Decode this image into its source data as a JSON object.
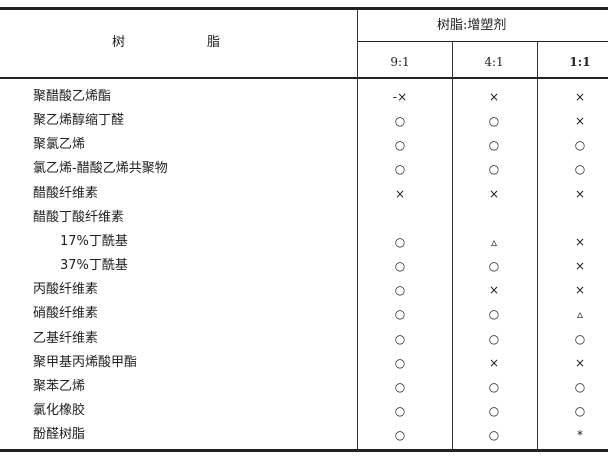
{
  "header": {
    "resin_label_left": "树",
    "resin_label_right": "脂",
    "ratio_group": "树脂:增塑剂",
    "ratios": [
      "9:1",
      "4:1",
      "1:1"
    ]
  },
  "rows": [
    {
      "name": "聚醋酸乙烯酯",
      "indent": false,
      "values": [
        "-×",
        "×",
        "×"
      ]
    },
    {
      "name": "聚乙烯醇缩丁醛",
      "indent": false,
      "values": [
        "○",
        "○",
        "×"
      ]
    },
    {
      "name": "聚氯乙烯",
      "indent": false,
      "values": [
        "○",
        "○",
        "○"
      ]
    },
    {
      "name": "氯乙烯-醋酸乙烯共聚物",
      "indent": false,
      "values": [
        "○",
        "○",
        "○"
      ]
    },
    {
      "name": "醋酸纤维素",
      "indent": false,
      "values": [
        "×",
        "×",
        "×"
      ]
    },
    {
      "name": "醋酸丁酸纤维素",
      "indent": false,
      "values": [
        "",
        "",
        ""
      ]
    },
    {
      "name": "17%丁酰基",
      "indent": true,
      "values": [
        "○",
        "▵",
        "×"
      ]
    },
    {
      "name": "37%丁酰基",
      "indent": true,
      "values": [
        "○",
        "○",
        "×"
      ]
    },
    {
      "name": "丙酸纤维素",
      "indent": false,
      "values": [
        "○",
        "×",
        "×"
      ]
    },
    {
      "name": "硝酸纤维素",
      "indent": false,
      "values": [
        "○",
        "○",
        "▵"
      ]
    },
    {
      "name": "乙基纤维素",
      "indent": false,
      "values": [
        "○",
        "○",
        "○"
      ]
    },
    {
      "name": "聚甲基丙烯酸甲酯",
      "indent": false,
      "values": [
        "○",
        "×",
        "×"
      ]
    },
    {
      "name": "聚苯乙烯",
      "indent": false,
      "values": [
        "○",
        "○",
        "○"
      ]
    },
    {
      "name": "氯化橡胶",
      "indent": false,
      "values": [
        "○",
        "○",
        "○"
      ]
    },
    {
      "name": "酚醛树脂",
      "indent": false,
      "values": [
        "○",
        "○",
        "*"
      ]
    }
  ]
}
